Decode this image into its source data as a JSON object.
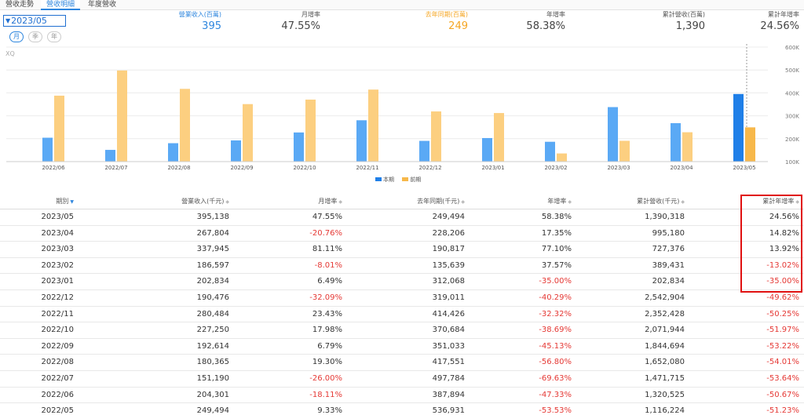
{
  "tabs": [
    "營收走勢",
    "營收明細",
    "年度營收"
  ],
  "period": {
    "value": "2023/05"
  },
  "pills": [
    "月",
    "季",
    "年"
  ],
  "xq_label": "XQ",
  "metrics": [
    {
      "label": "營業收入(百萬)",
      "value": "395",
      "accent": "blue"
    },
    {
      "label": "月增率",
      "value": "47.55%",
      "accent": ""
    },
    {
      "label": "去年同期(百萬)",
      "value": "249",
      "accent": "orange"
    },
    {
      "label": "年增率",
      "value": "58.38%",
      "accent": ""
    },
    {
      "label": "累計營收(百萬)",
      "value": "1,390",
      "accent": ""
    },
    {
      "label": "累計年增率",
      "value": "24.56%",
      "accent": ""
    }
  ],
  "chart_data": {
    "type": "bar",
    "categories": [
      "2022/06",
      "2022/07",
      "2022/08",
      "2022/09",
      "2022/10",
      "2022/11",
      "2022/12",
      "2023/01",
      "2023/02",
      "2023/03",
      "2023/04",
      "2023/05"
    ],
    "series": [
      {
        "name": "本期",
        "color": "#5aa9f5",
        "highlight_color": "#1f7fe8",
        "values": [
          204.301,
          151.19,
          180.365,
          192.614,
          227.25,
          280.484,
          190.476,
          202.834,
          186.597,
          337.945,
          267.804,
          395.138
        ]
      },
      {
        "name": "前期",
        "color": "#fccf80",
        "highlight_color": "#f7b84a",
        "values": [
          387.894,
          497.784,
          417.551,
          351.033,
          370.684,
          414.426,
          319.011,
          312.068,
          135.639,
          190.817,
          228.206,
          249.494
        ]
      }
    ],
    "y_ticks": [
      "100K",
      "200K",
      "300K",
      "400K",
      "500K",
      "600K"
    ],
    "ylim": [
      100,
      600
    ],
    "grid": true,
    "legend": "bottom-center"
  },
  "table": {
    "headers": [
      "期別",
      "營業收入(千元)",
      "月增率",
      "去年同期(千元)",
      "年增率",
      "累計營收(千元)",
      "累計年增率"
    ],
    "rows": [
      [
        "2023/05",
        "395,138",
        "47.55%",
        "249,494",
        "58.38%",
        "1,390,318",
        "24.56%"
      ],
      [
        "2023/04",
        "267,804",
        "-20.76%",
        "228,206",
        "17.35%",
        "995,180",
        "14.82%"
      ],
      [
        "2023/03",
        "337,945",
        "81.11%",
        "190,817",
        "77.10%",
        "727,376",
        "13.92%"
      ],
      [
        "2023/02",
        "186,597",
        "-8.01%",
        "135,639",
        "37.57%",
        "389,431",
        "-13.02%"
      ],
      [
        "2023/01",
        "202,834",
        "6.49%",
        "312,068",
        "-35.00%",
        "202,834",
        "-35.00%"
      ],
      [
        "2022/12",
        "190,476",
        "-32.09%",
        "319,011",
        "-40.29%",
        "2,542,904",
        "-49.62%"
      ],
      [
        "2022/11",
        "280,484",
        "23.43%",
        "414,426",
        "-32.32%",
        "2,352,428",
        "-50.25%"
      ],
      [
        "2022/10",
        "227,250",
        "17.98%",
        "370,684",
        "-38.69%",
        "2,071,944",
        "-51.97%"
      ],
      [
        "2022/09",
        "192,614",
        "6.79%",
        "351,033",
        "-45.13%",
        "1,844,694",
        "-53.22%"
      ],
      [
        "2022/08",
        "180,365",
        "19.30%",
        "417,551",
        "-56.80%",
        "1,652,080",
        "-54.01%"
      ],
      [
        "2022/07",
        "151,190",
        "-26.00%",
        "497,784",
        "-69.63%",
        "1,471,715",
        "-53.64%"
      ],
      [
        "2022/06",
        "204,301",
        "-18.11%",
        "387,894",
        "-47.33%",
        "1,320,525",
        "-50.67%"
      ],
      [
        "2022/05",
        "249,494",
        "9.33%",
        "536,931",
        "-53.53%",
        "1,116,224",
        "-51.23%"
      ]
    ]
  }
}
